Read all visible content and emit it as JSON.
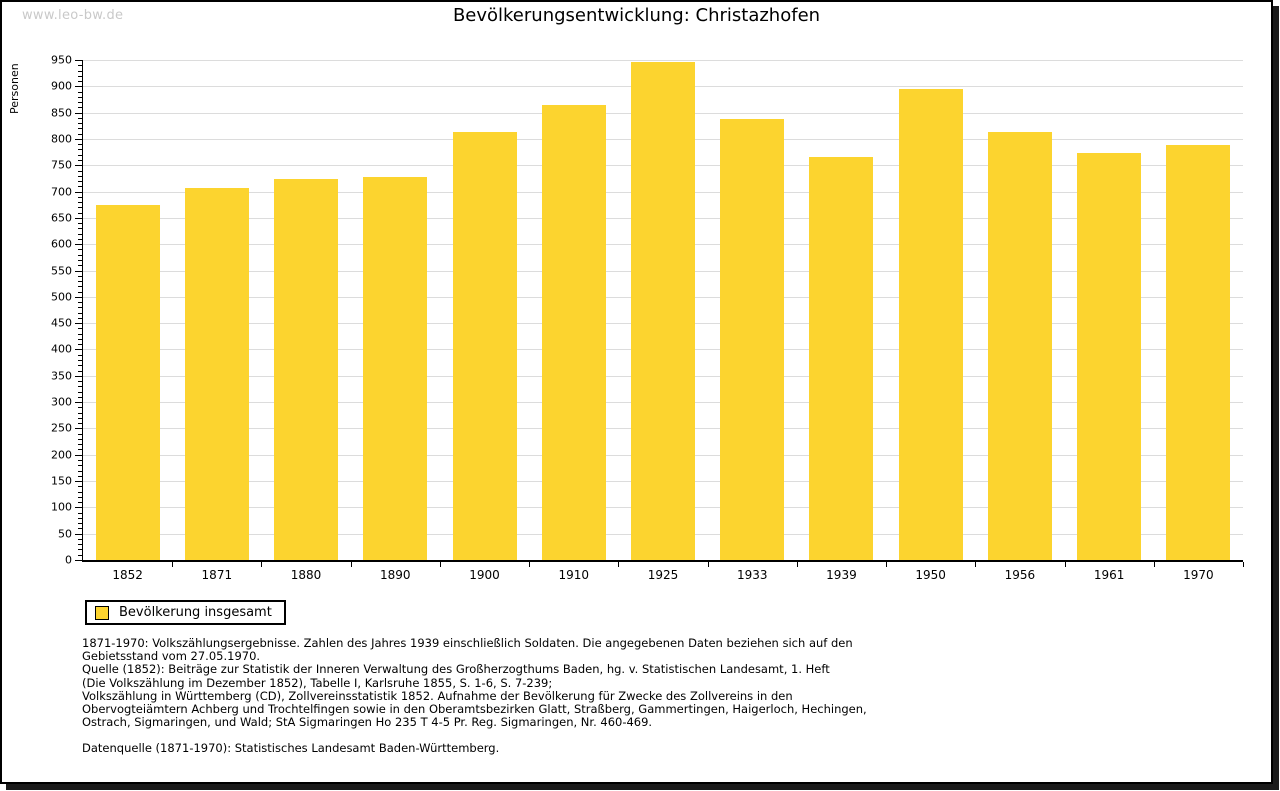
{
  "watermark": "www.leo-bw.de",
  "title": "Bevölkerungsentwicklung: Christazhofen",
  "legend": {
    "label": "Bevölkerung insgesamt"
  },
  "colors": {
    "bar": "#fcd42f",
    "grid": "#dcdcdc",
    "watermark": "#c9c9c9",
    "axis": "#000000"
  },
  "chart_data": {
    "type": "bar",
    "title": "Bevölkerungsentwicklung: Christazhofen",
    "xlabel": "",
    "ylabel": "Personen",
    "categories": [
      "1852",
      "1871",
      "1880",
      "1890",
      "1900",
      "1910",
      "1925",
      "1933",
      "1939",
      "1950",
      "1956",
      "1961",
      "1970"
    ],
    "values": [
      674,
      706,
      723,
      728,
      814,
      864,
      946,
      838,
      765,
      895,
      814,
      774,
      788
    ],
    "series_name": "Bevölkerung insgesamt",
    "ylim": [
      0,
      950
    ],
    "ytick_step": 50,
    "yminor_step": 10,
    "grid": true,
    "legend_position": "bottom-left",
    "bar_color": "#fcd42f"
  },
  "footer": {
    "lines": [
      "1871-1970: Volkszählungsergebnisse. Zahlen des Jahres 1939 einschließlich Soldaten. Die angegebenen Daten beziehen sich auf den",
      "Gebietsstand vom 27.05.1970.",
      "Quelle (1852): Beiträge zur Statistik der Inneren Verwaltung des Großherzogthums Baden, hg. v. Statistischen Landesamt, 1. Heft",
      "(Die Volkszählung im Dezember 1852), Tabelle I, Karlsruhe 1855, S. 1-6, S. 7-239;",
      "Volkszählung in Württemberg (CD), Zollvereinsstatistik 1852. Aufnahme der Bevölkerung für Zwecke des Zollvereins in den",
      "Obervogteiämtern Achberg und Trochtelfingen sowie in den Oberamtsbezirken Glatt, Straßberg, Gammertingen, Haigerloch, Hechingen,",
      "Ostrach, Sigmaringen, und Wald; StA Sigmaringen Ho 235 T 4-5 Pr. Reg. Sigmaringen, Nr. 460-469."
    ],
    "datasource": "Datenquelle (1871-1970): Statistisches Landesamt Baden-Württemberg."
  }
}
